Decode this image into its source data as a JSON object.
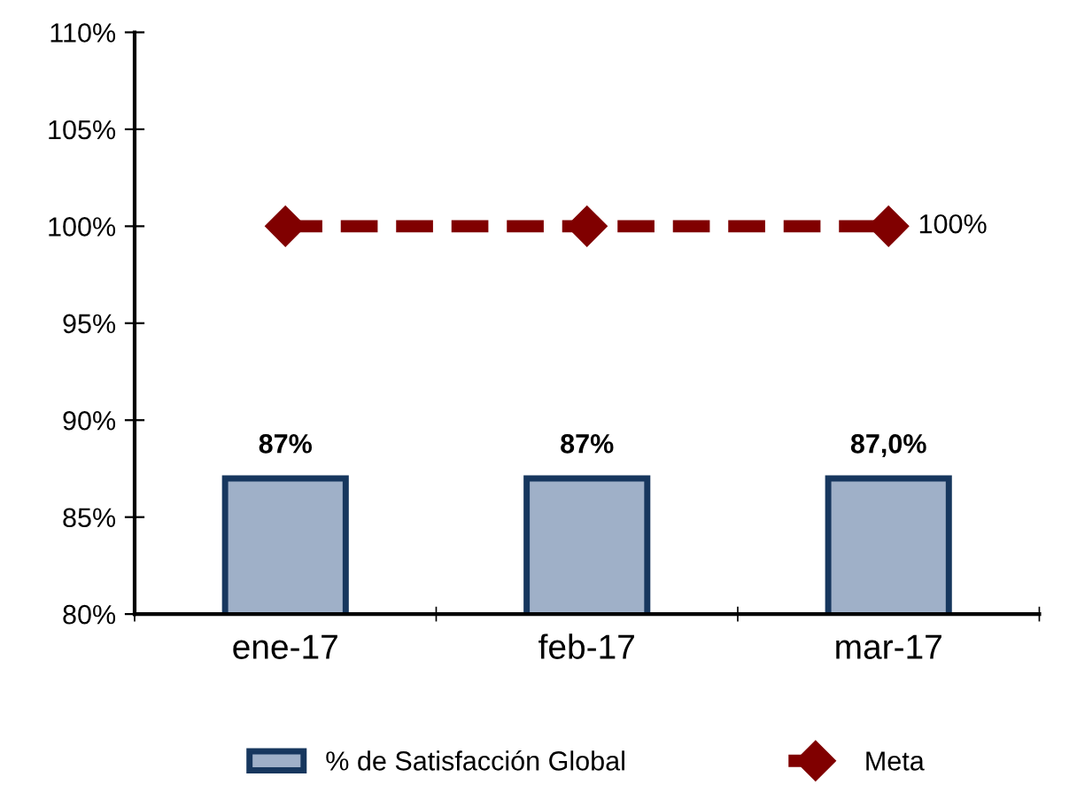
{
  "chart_data": {
    "type": "bar",
    "categories": [
      "ene-17",
      "feb-17",
      "mar-17"
    ],
    "series": [
      {
        "name": "% de Satisfacción Global",
        "color": "#9fb0c8",
        "values": [
          87,
          87,
          87
        ],
        "value_labels": [
          "87%",
          "87%",
          "87,0%"
        ]
      },
      {
        "name": "Meta",
        "type": "line",
        "color": "#800000",
        "values": [
          100,
          100,
          100
        ],
        "value_labels": [
          null,
          null,
          "100%"
        ],
        "marker": "diamond",
        "line_style": "dashed"
      }
    ],
    "ylim": [
      80,
      110
    ],
    "yticks": [
      {
        "value": 80,
        "label": "80%"
      },
      {
        "value": 85,
        "label": "85%"
      },
      {
        "value": 90,
        "label": "90%"
      },
      {
        "value": 95,
        "label": "95%"
      },
      {
        "value": 100,
        "label": "100%"
      },
      {
        "value": 105,
        "label": "105%"
      },
      {
        "value": 110,
        "label": "110%"
      }
    ],
    "grid": false,
    "legend": "bottom"
  }
}
